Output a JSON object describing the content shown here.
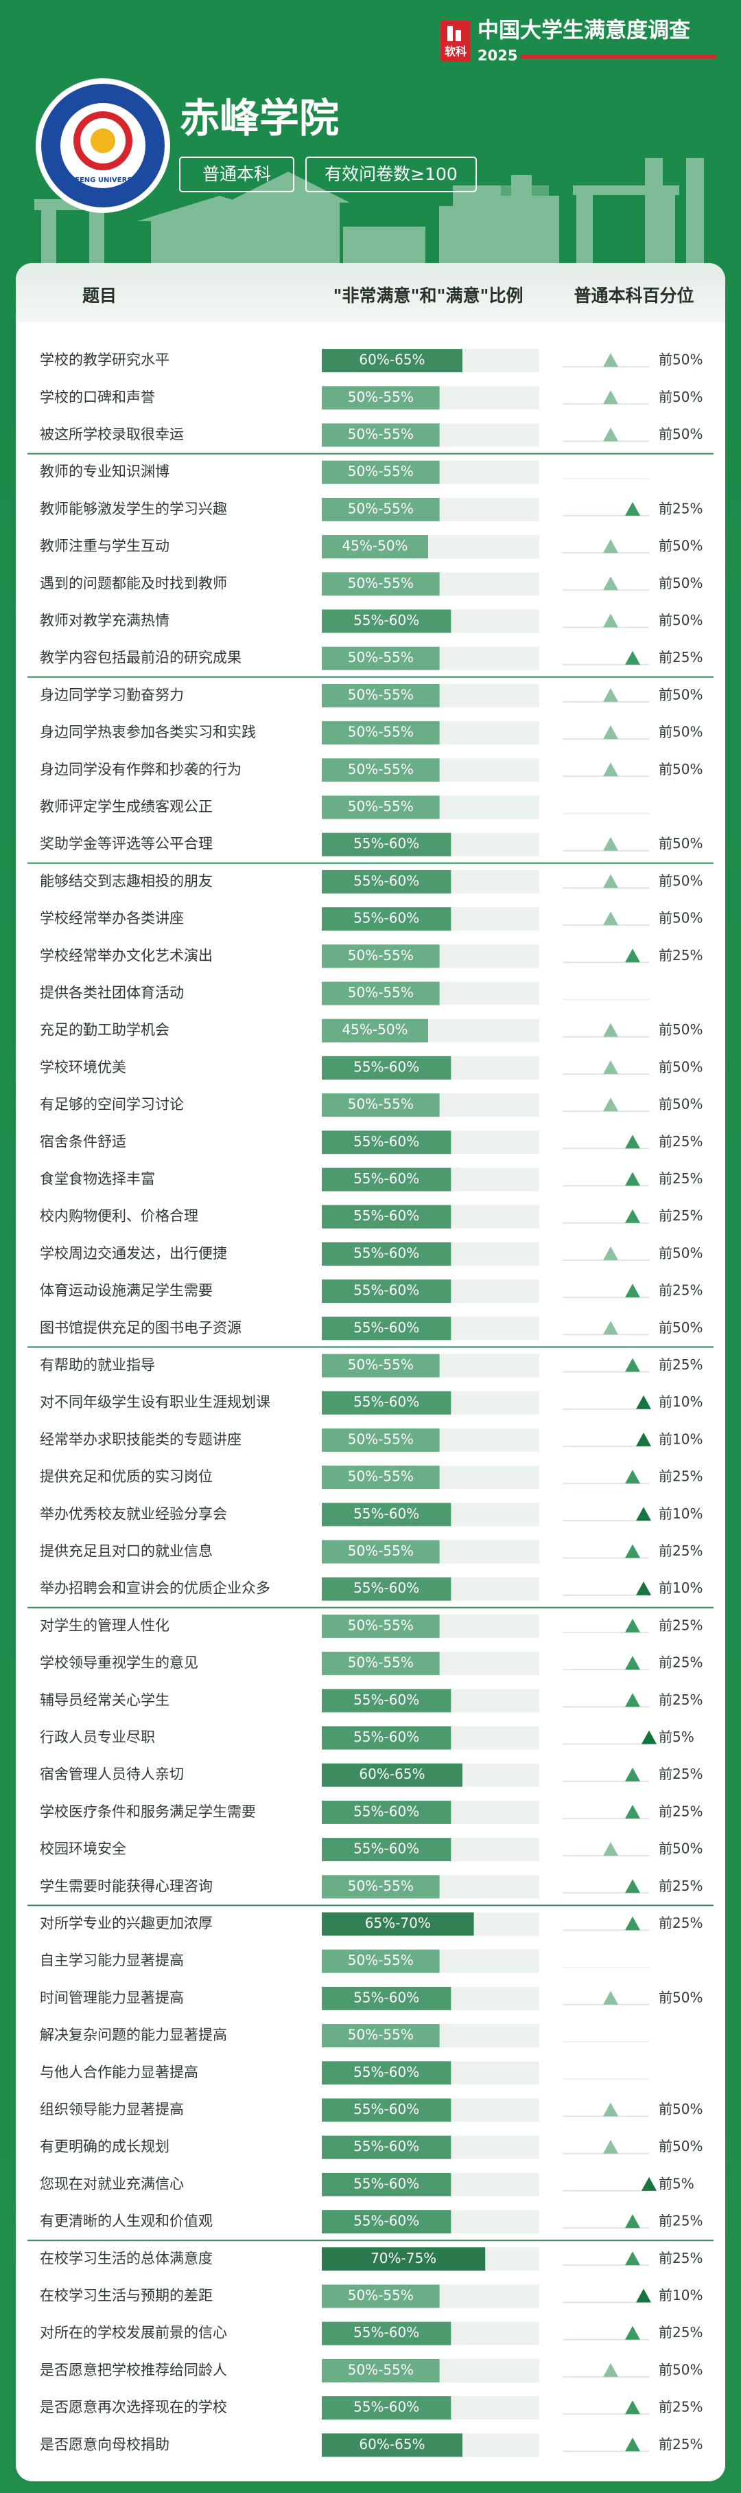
{
  "header": {
    "brand": "中国大学生满意度调查",
    "year": "2025",
    "logo_text": "软科",
    "school": "赤峰学院",
    "logo_caption": "CHIFENG UNIVERSITY",
    "tags": [
      "普通本科",
      "有效问卷数≥100"
    ]
  },
  "table": {
    "columns": [
      "题目",
      "\"非常满意\"和\"满意\"比例",
      "普通本科百分位"
    ],
    "sections": [
      {
        "rows": [
          {
            "item": "学校的教学研究水平",
            "ratio": "60%-65%",
            "percentile": "前50%"
          },
          {
            "item": "学校的口碑和声誉",
            "ratio": "50%-55%",
            "percentile": "前50%"
          },
          {
            "item": "被这所学校录取很幸运",
            "ratio": "50%-55%",
            "percentile": "前50%"
          }
        ]
      },
      {
        "rows": [
          {
            "item": "教师的专业知识渊博",
            "ratio": "50%-55%"
          },
          {
            "item": "教师能够激发学生的学习兴趣",
            "ratio": "50%-55%",
            "percentile": "前25%"
          },
          {
            "item": "教师注重与学生互动",
            "ratio": "45%-50%",
            "percentile": "前50%"
          },
          {
            "item": "遇到的问题都能及时找到教师",
            "ratio": "50%-55%",
            "percentile": "前50%"
          },
          {
            "item": "教师对教学充满热情",
            "ratio": "55%-60%",
            "percentile": "前50%"
          },
          {
            "item": "教学内容包括最前沿的研究成果",
            "ratio": "50%-55%",
            "percentile": "前25%"
          }
        ]
      },
      {
        "rows": [
          {
            "item": "身边同学学习勤奋努力",
            "ratio": "50%-55%",
            "percentile": "前50%"
          },
          {
            "item": "身边同学热衷参加各类实习和实践",
            "ratio": "50%-55%",
            "percentile": "前50%"
          },
          {
            "item": "身边同学没有作弊和抄袭的行为",
            "ratio": "50%-55%",
            "percentile": "前50%"
          },
          {
            "item": "教师评定学生成绩客观公正",
            "ratio": "50%-55%"
          },
          {
            "item": "奖助学金等评选等公平合理",
            "ratio": "55%-60%",
            "percentile": "前50%"
          }
        ]
      },
      {
        "rows": [
          {
            "item": "能够结交到志趣相投的朋友",
            "ratio": "55%-60%",
            "percentile": "前50%"
          },
          {
            "item": "学校经常举办各类讲座",
            "ratio": "55%-60%",
            "percentile": "前50%"
          },
          {
            "item": "学校经常举办文化艺术演出",
            "ratio": "50%-55%",
            "percentile": "前25%"
          },
          {
            "item": "提供各类社团体育活动",
            "ratio": "50%-55%"
          },
          {
            "item": "充足的勤工助学机会",
            "ratio": "45%-50%",
            "percentile": "前50%"
          },
          {
            "item": "学校环境优美",
            "ratio": "55%-60%",
            "percentile": "前50%"
          },
          {
            "item": "有足够的空间学习讨论",
            "ratio": "50%-55%",
            "percentile": "前50%"
          },
          {
            "item": "宿舍条件舒适",
            "ratio": "55%-60%",
            "percentile": "前25%"
          },
          {
            "item": "食堂食物选择丰富",
            "ratio": "55%-60%",
            "percentile": "前25%"
          },
          {
            "item": "校内购物便利、价格合理",
            "ratio": "55%-60%",
            "percentile": "前25%"
          },
          {
            "item": "学校周边交通发达，出行便捷",
            "ratio": "55%-60%",
            "percentile": "前50%"
          },
          {
            "item": "体育运动设施满足学生需要",
            "ratio": "55%-60%",
            "percentile": "前25%"
          },
          {
            "item": "图书馆提供充足的图书电子资源",
            "ratio": "55%-60%",
            "percentile": "前50%"
          }
        ]
      },
      {
        "rows": [
          {
            "item": "有帮助的就业指导",
            "ratio": "50%-55%",
            "percentile": "前25%"
          },
          {
            "item": "对不同年级学生设有职业生涯规划课",
            "ratio": "55%-60%",
            "percentile": "前10%"
          },
          {
            "item": "经常举办求职技能类的专题讲座",
            "ratio": "50%-55%",
            "percentile": "前10%"
          },
          {
            "item": "提供充足和优质的实习岗位",
            "ratio": "50%-55%",
            "percentile": "前25%"
          },
          {
            "item": "举办优秀校友就业经验分享会",
            "ratio": "55%-60%",
            "percentile": "前10%"
          },
          {
            "item": "提供充足且对口的就业信息",
            "ratio": "50%-55%",
            "percentile": "前25%"
          },
          {
            "item": "举办招聘会和宣讲会的优质企业众多",
            "ratio": "55%-60%",
            "percentile": "前10%"
          }
        ]
      },
      {
        "rows": [
          {
            "item": "对学生的管理人性化",
            "ratio": "50%-55%",
            "percentile": "前25%"
          },
          {
            "item": "学校领导重视学生的意见",
            "ratio": "50%-55%",
            "percentile": "前25%"
          },
          {
            "item": "辅导员经常关心学生",
            "ratio": "55%-60%",
            "percentile": "前25%"
          },
          {
            "item": "行政人员专业尽职",
            "ratio": "55%-60%",
            "percentile": "前5%"
          },
          {
            "item": "宿舍管理人员待人亲切",
            "ratio": "60%-65%",
            "percentile": "前25%"
          },
          {
            "item": "学校医疗条件和服务满足学生需要",
            "ratio": "55%-60%",
            "percentile": "前25%"
          },
          {
            "item": "校园环境安全",
            "ratio": "55%-60%",
            "percentile": "前50%"
          },
          {
            "item": "学生需要时能获得心理咨询",
            "ratio": "50%-55%",
            "percentile": "前25%"
          }
        ]
      },
      {
        "rows": [
          {
            "item": "对所学专业的兴趣更加浓厚",
            "ratio": "65%-70%",
            "percentile": "前25%"
          },
          {
            "item": "自主学习能力显著提高",
            "ratio": "50%-55%"
          },
          {
            "item": "时间管理能力显著提高",
            "ratio": "55%-60%",
            "percentile": "前50%"
          },
          {
            "item": "解决复杂问题的能力显著提高",
            "ratio": "50%-55%"
          },
          {
            "item": "与他人合作能力显著提高",
            "ratio": "55%-60%"
          },
          {
            "item": "组织领导能力显著提高",
            "ratio": "55%-60%",
            "percentile": "前50%"
          },
          {
            "item": "有更明确的成长规划",
            "ratio": "55%-60%",
            "percentile": "前50%"
          },
          {
            "item": "您现在对就业充满信心",
            "ratio": "55%-60%",
            "percentile": "前5%"
          },
          {
            "item": "有更清晰的人生观和价值观",
            "ratio": "55%-60%",
            "percentile": "前25%"
          }
        ]
      },
      {
        "rows": [
          {
            "item": "在校学习生活的总体满意度",
            "ratio": "70%-75%",
            "percentile": "前25%"
          },
          {
            "item": "在校学习生活与预期的差距",
            "ratio": "50%-55%",
            "percentile": "前10%"
          },
          {
            "item": "对所在的学校发展前景的信心",
            "ratio": "55%-60%",
            "percentile": "前25%"
          },
          {
            "item": "是否愿意把学校推荐给同龄人",
            "ratio": "50%-55%",
            "percentile": "前50%"
          },
          {
            "item": "是否愿意再次选择现在的学校",
            "ratio": "55%-60%",
            "percentile": "前25%"
          },
          {
            "item": "是否愿意向母校捐助",
            "ratio": "60%-65%",
            "percentile": "前25%"
          }
        ]
      }
    ]
  }
}
